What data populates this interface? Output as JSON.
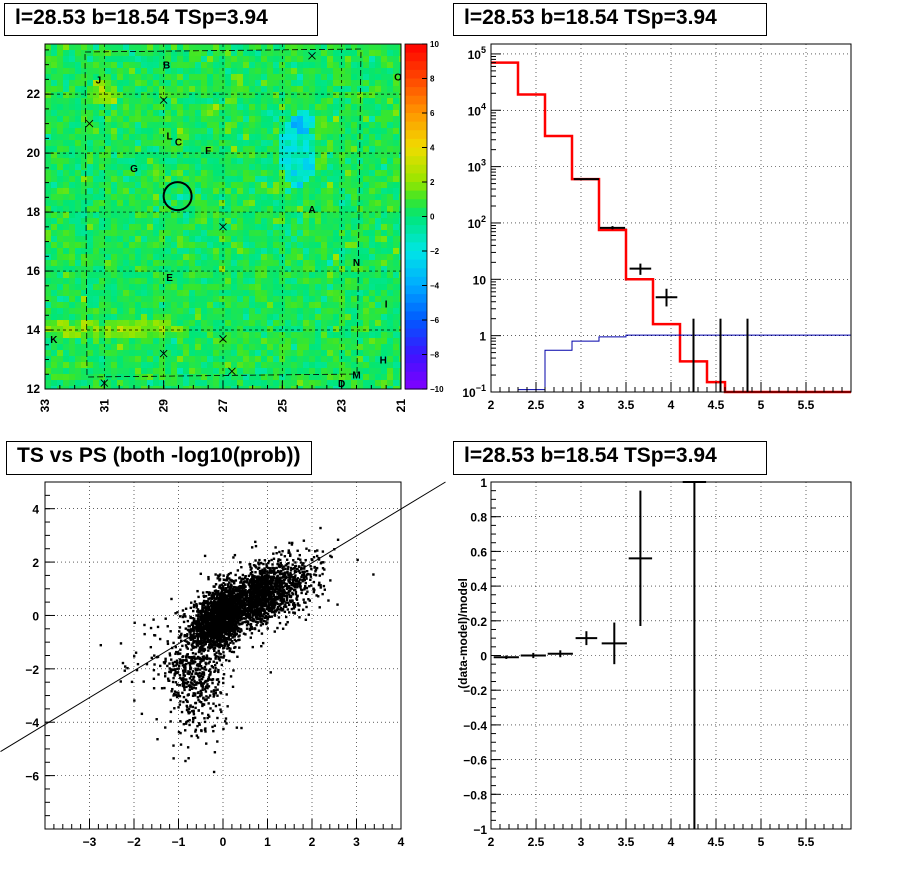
{
  "chart_data": [
    {
      "type": "heatmap",
      "title": "l=28.53 b=18.54 TSp=3.94",
      "xlim": [
        33,
        21
      ],
      "ylim": [
        12,
        23.7
      ],
      "x_ticks": [
        "33",
        "31",
        "29",
        "27",
        "25",
        "23",
        "21"
      ],
      "y_ticks": [
        "12",
        "14",
        "16",
        "18",
        "20",
        "22"
      ],
      "z_ticks": [
        "10",
        "8",
        "6",
        "4",
        "2",
        "0",
        "−2",
        "−4",
        "−6",
        "−8",
        "−10"
      ],
      "zlim": [
        -10,
        10
      ],
      "sources": [
        {
          "label": "J",
          "l": 31.2,
          "b": 22.5
        },
        {
          "label": "B",
          "l": 28.9,
          "b": 23.0
        },
        {
          "label": "O",
          "l": 21.1,
          "b": 22.6
        },
        {
          "label": "L",
          "l": 28.8,
          "b": 20.6
        },
        {
          "label": "C",
          "l": 28.5,
          "b": 20.4
        },
        {
          "label": "F",
          "l": 27.5,
          "b": 20.1
        },
        {
          "label": "G",
          "l": 30.0,
          "b": 19.5
        },
        {
          "label": "A",
          "l": 24.0,
          "b": 18.1
        },
        {
          "label": "N",
          "l": 22.5,
          "b": 16.3
        },
        {
          "label": "E",
          "l": 28.8,
          "b": 15.8
        },
        {
          "label": "I",
          "l": 21.5,
          "b": 14.9
        },
        {
          "label": "K",
          "l": 32.7,
          "b": 13.7
        },
        {
          "label": "H",
          "l": 21.6,
          "b": 13.0
        },
        {
          "label": "M",
          "l": 22.5,
          "b": 12.5
        },
        {
          "label": "D",
          "l": 23.0,
          "b": 12.2
        }
      ],
      "marker_circle": {
        "l": 28.53,
        "b": 18.54
      },
      "crosses": [
        {
          "l": 24.0,
          "b": 23.3
        },
        {
          "l": 31.5,
          "b": 21.0
        },
        {
          "l": 29.0,
          "b": 21.8
        },
        {
          "l": 27.0,
          "b": 17.5
        },
        {
          "l": 29.0,
          "b": 13.2
        },
        {
          "l": 27.0,
          "b": 13.7
        },
        {
          "l": 26.7,
          "b": 12.6
        },
        {
          "l": 31.0,
          "b": 12.2
        }
      ]
    },
    {
      "type": "line",
      "title": "l=28.53 b=18.54 TSp=3.94",
      "xlim": [
        2,
        6
      ],
      "ylim": [
        0.1,
        150000
      ],
      "yscale": "log",
      "x_ticks": [
        "2",
        "2.5",
        "3",
        "3.5",
        "4",
        "4.5",
        "5",
        "5.5"
      ],
      "y_ticks": [
        "10^-1",
        "1",
        "10",
        "10^2",
        "10^3",
        "10^4",
        "10^5"
      ],
      "series": [
        {
          "color": "#ff0000",
          "kind": "step",
          "edges": [
            2.0,
            2.3,
            2.6,
            2.9,
            3.2,
            3.5,
            3.8,
            4.1,
            4.4,
            4.6,
            6.0
          ],
          "values": [
            70000,
            19000,
            3500,
            600,
            75,
            10,
            1.6,
            0.35,
            0.15,
            0.1
          ]
        },
        {
          "color": "#0000aa",
          "kind": "step",
          "edges": [
            2.0,
            2.3,
            2.6,
            2.9,
            3.2,
            3.5,
            6.0
          ],
          "values": [
            0.1,
            0.11,
            0.55,
            0.8,
            0.95,
            1.02
          ]
        },
        {
          "color": "#000000",
          "kind": "errorbars",
          "points": [
            {
              "x": 3.06,
              "y": 600,
              "dx": 0.14,
              "ylo": 580,
              "yhi": 620
            },
            {
              "x": 3.35,
              "y": 82,
              "dx": 0.14,
              "ylo": 77,
              "yhi": 88
            },
            {
              "x": 3.66,
              "y": 15.5,
              "dx": 0.12,
              "ylo": 12,
              "yhi": 19
            },
            {
              "x": 3.95,
              "y": 4.8,
              "dx": 0.12,
              "ylo": 3.3,
              "yhi": 6.8
            },
            {
              "x": 4.25,
              "y": 0.1,
              "dx": 0.0,
              "ylo": 0.1,
              "yhi": 2.0
            },
            {
              "x": 4.55,
              "y": 0.1,
              "dx": 0.0,
              "ylo": 0.1,
              "yhi": 2.0
            },
            {
              "x": 4.85,
              "y": 0.1,
              "dx": 0.0,
              "ylo": 0.1,
              "yhi": 2.0
            }
          ]
        }
      ]
    },
    {
      "type": "scatter",
      "title": "TS vs PS (both -log10(prob))",
      "xlim": [
        -4,
        4
      ],
      "ylim": [
        -8,
        5
      ],
      "x_ticks": [
        "−3",
        "−2",
        "−1",
        "0",
        "1",
        "2",
        "3",
        "4"
      ],
      "y_ticks": [
        "−6",
        "−4",
        "−2",
        "0",
        "2",
        "4"
      ],
      "approx_points": 4000,
      "reference_line": {
        "x1": -5,
        "y1": -5.1,
        "x2": 5,
        "y2": 5
      }
    },
    {
      "type": "scatter",
      "title": "l=28.53 b=18.54 TSp=3.94",
      "xlabel": "",
      "ylabel": "(data-model)/model",
      "xlim": [
        2,
        6
      ],
      "ylim": [
        -1,
        1
      ],
      "x_ticks": [
        "2",
        "2.5",
        "3",
        "3.5",
        "4",
        "4.5",
        "5",
        "5.5"
      ],
      "y_ticks": [
        "−1",
        "−0.8",
        "−0.6",
        "−0.4",
        "−0.2",
        "0",
        "0.2",
        "0.4",
        "0.6",
        "0.8",
        "1"
      ],
      "points": [
        {
          "x": 2.17,
          "y": -0.01,
          "dx": 0.14,
          "ylo": -0.02,
          "yhi": 0.0
        },
        {
          "x": 2.47,
          "y": 0.0,
          "dx": 0.14,
          "ylo": -0.015,
          "yhi": 0.015
        },
        {
          "x": 2.77,
          "y": 0.01,
          "dx": 0.14,
          "ylo": -0.01,
          "yhi": 0.03
        },
        {
          "x": 3.06,
          "y": 0.1,
          "dx": 0.12,
          "ylo": 0.06,
          "yhi": 0.14
        },
        {
          "x": 3.37,
          "y": 0.07,
          "dx": 0.14,
          "ylo": -0.05,
          "yhi": 0.19
        },
        {
          "x": 3.66,
          "y": 0.56,
          "dx": 0.13,
          "ylo": 0.17,
          "yhi": 0.95
        },
        {
          "x": 4.26,
          "y": 1.0,
          "dx": 0.13,
          "ylo": -1.0,
          "yhi": 1.0
        }
      ]
    }
  ]
}
